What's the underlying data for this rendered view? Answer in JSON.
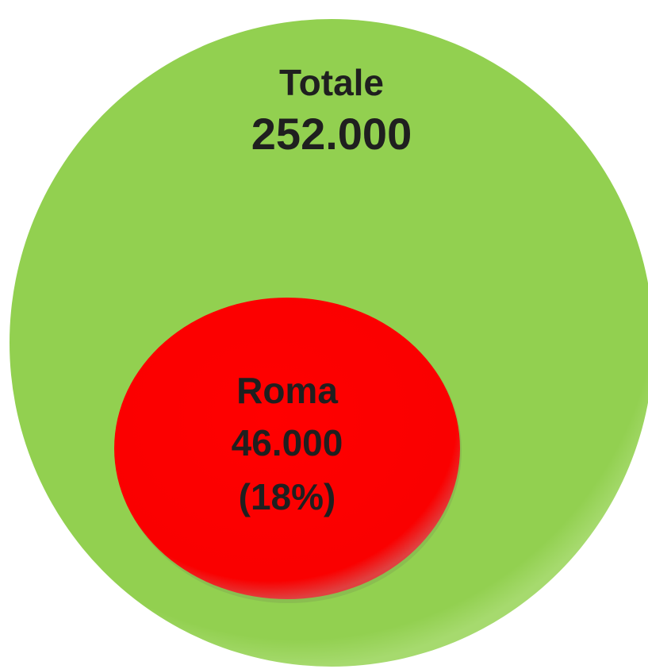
{
  "outer": {
    "label": "Totale",
    "value": "252.000"
  },
  "inner": {
    "label": "Roma",
    "value": "46.000",
    "share": "(18%)"
  }
}
